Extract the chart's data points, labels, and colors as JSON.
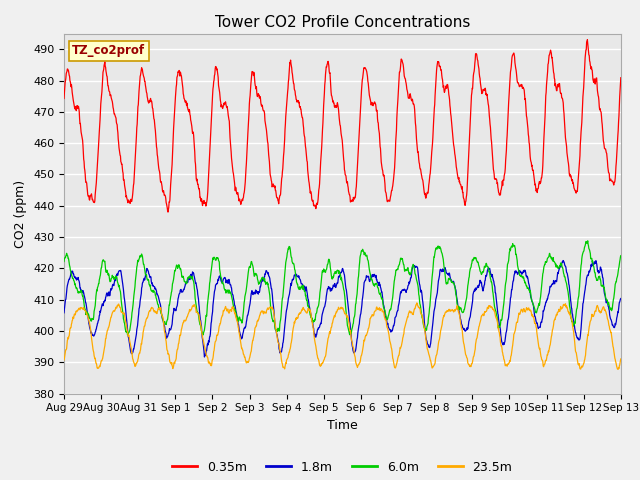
{
  "title": "Tower CO2 Profile Concentrations",
  "xlabel": "Time",
  "ylabel": "CO2 (ppm)",
  "ylim": [
    380,
    495
  ],
  "yticks": [
    380,
    390,
    400,
    410,
    420,
    430,
    440,
    450,
    460,
    470,
    480,
    490
  ],
  "date_labels": [
    "Aug 29",
    "Aug 30",
    "Aug 31",
    "Sep 1",
    "Sep 2",
    "Sep 3",
    "Sep 4",
    "Sep 5",
    "Sep 6",
    "Sep 7",
    "Sep 8",
    "Sep 9",
    "Sep 10",
    "Sep 11",
    "Sep 12",
    "Sep 13"
  ],
  "series_colors": [
    "#ff0000",
    "#0000cc",
    "#00cc00",
    "#ffaa00"
  ],
  "series_labels": [
    "0.35m",
    "1.8m",
    "6.0m",
    "23.5m"
  ],
  "annotation_text": "TZ_co2prof",
  "annotation_bg": "#ffffcc",
  "annotation_border": "#cc9900",
  "bg_color": "#e8e8e8",
  "grid_color": "#ffffff",
  "n_points": 1500,
  "seed": 7
}
